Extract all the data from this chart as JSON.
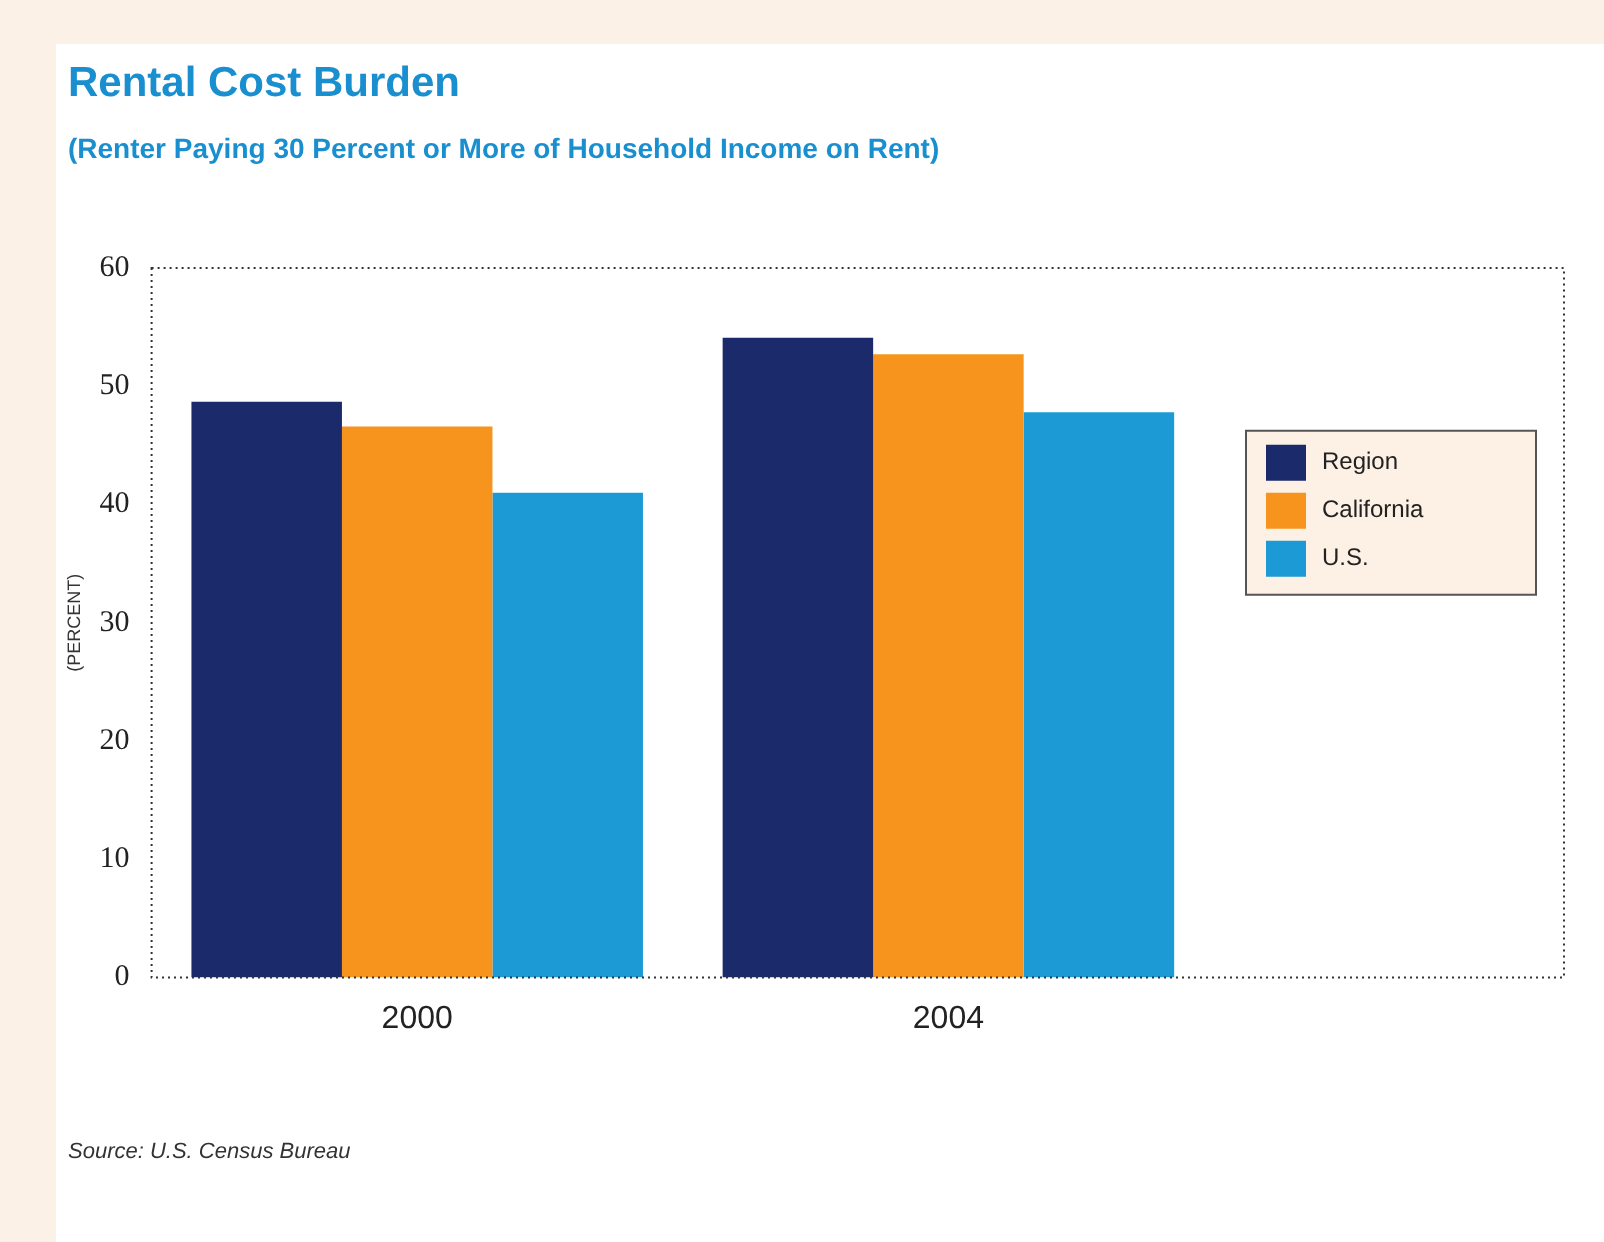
{
  "chart_data": {
    "type": "bar",
    "title": "Rental Cost Burden",
    "subtitle": "(Renter Paying 30 Percent or More of Household Income on Rent)",
    "ylabel": "(PERCENT)",
    "categories": [
      "2000",
      "2004"
    ],
    "series": [
      {
        "name": "Region",
        "color": "#1b2a6b",
        "values": [
          48.7,
          54.1
        ]
      },
      {
        "name": "California",
        "color": "#f7941d",
        "values": [
          46.6,
          52.7
        ]
      },
      {
        "name": "U.S.",
        "color": "#1b9ad6",
        "values": [
          41.0,
          47.8
        ]
      }
    ],
    "ylim": [
      0,
      60
    ],
    "yticks": [
      0,
      10,
      20,
      30,
      40,
      50,
      60
    ],
    "grid": false,
    "legend": "right",
    "annotations": [
      "Source: U.S. Census Bureau"
    ]
  }
}
